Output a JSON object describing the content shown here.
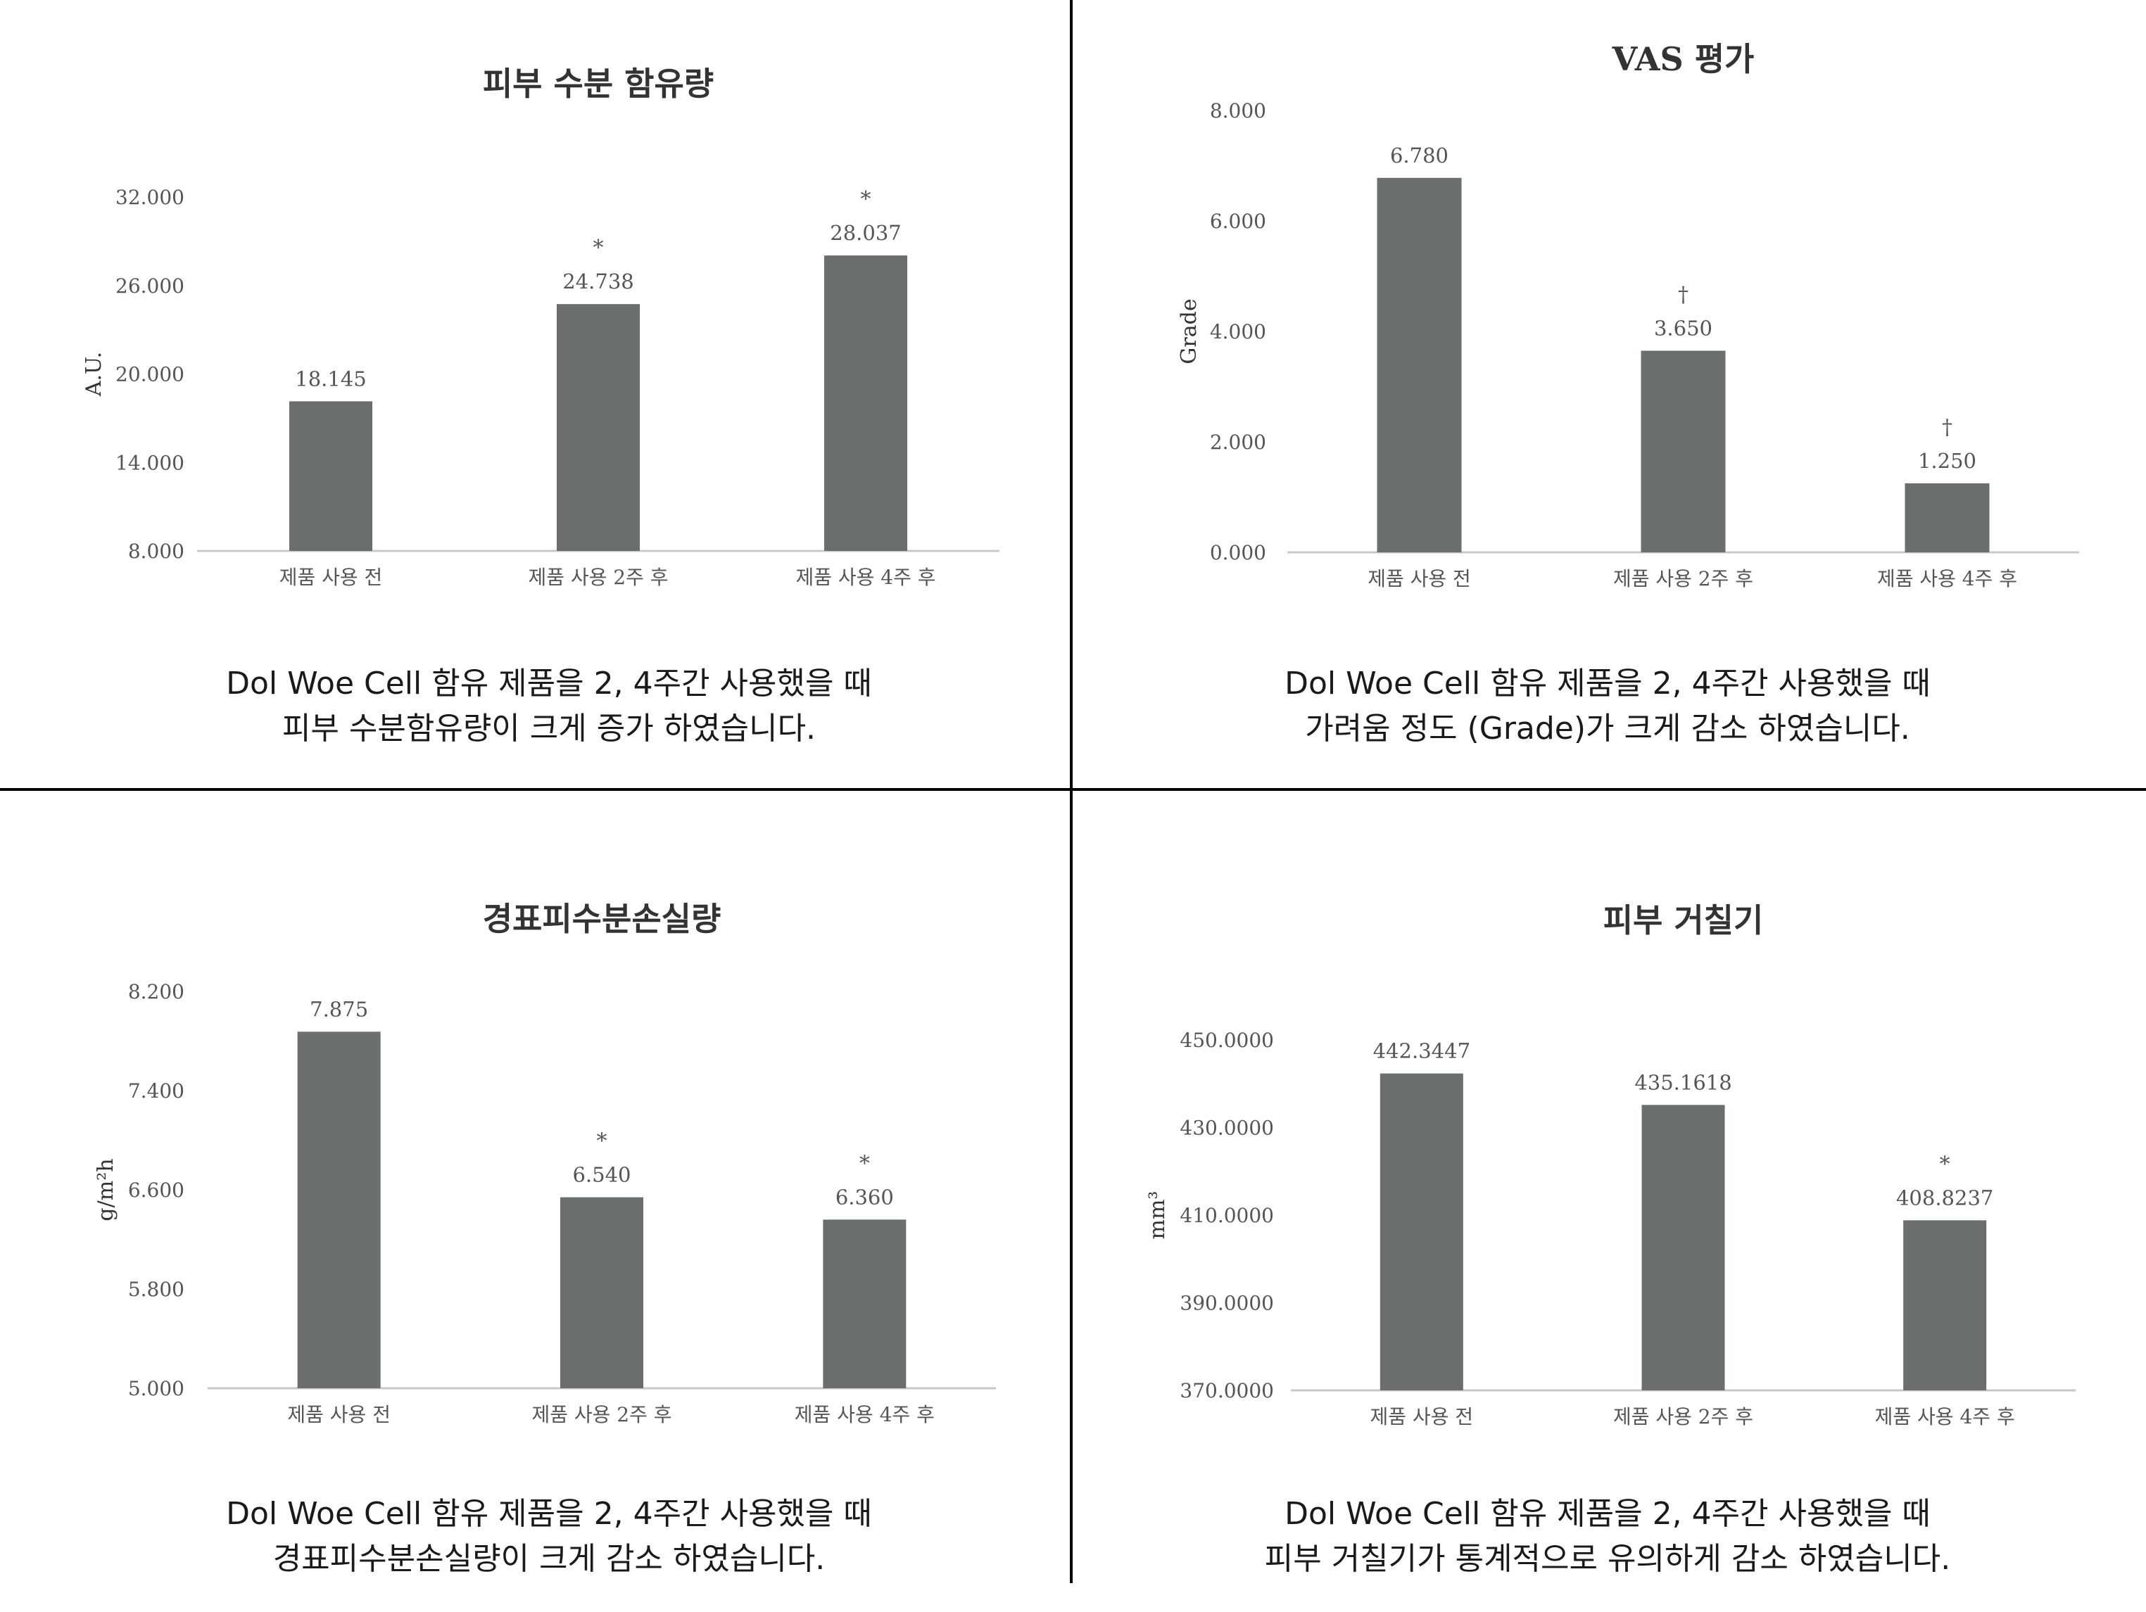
{
  "colors": {
    "bar": "#6a6e6f",
    "axis": "#c8c8c8",
    "divider": "#000000"
  },
  "chart_data": [
    {
      "type": "bar",
      "title": "피부 수분 함유량",
      "ylabel": "A.U.",
      "categories": [
        "제품 사용 전",
        "제품 사용 2주 후",
        "제품 사용 4주 후"
      ],
      "values": [
        18.145,
        24.738,
        28.037
      ],
      "value_labels": [
        "18.145",
        "24.738",
        "28.037"
      ],
      "markers": [
        "",
        "*",
        "*"
      ],
      "yticks": [
        "8.000",
        "14.000",
        "20.000",
        "26.000",
        "32.000"
      ],
      "ylim": [
        8,
        32
      ],
      "caption": [
        "Dol Woe Cell 함유 제품을 2, 4주간 사용했을 때",
        "피부 수분함유량이 크게 증가 하였습니다."
      ]
    },
    {
      "type": "bar",
      "title": "VAS 평가",
      "ylabel": "Grade",
      "categories": [
        "제품 사용 전",
        "제품 사용 2주 후",
        "제품 사용 4주 후"
      ],
      "values": [
        6.78,
        3.65,
        1.25
      ],
      "value_labels": [
        "6.780",
        "3.650",
        "1.250"
      ],
      "markers": [
        "",
        "†",
        "†"
      ],
      "yticks": [
        "0.000",
        "2.000",
        "4.000",
        "6.000",
        "8.000"
      ],
      "ylim": [
        0,
        8
      ],
      "caption": [
        "Dol Woe Cell 함유 제품을 2, 4주간 사용했을 때",
        "가려움 정도 (Grade)가 크게 감소 하였습니다."
      ]
    },
    {
      "type": "bar",
      "title": "경표피수분손실량",
      "ylabel": "g/m²h",
      "categories": [
        "제품 사용 전",
        "제품 사용 2주 후",
        "제품 사용 4주 후"
      ],
      "values": [
        7.875,
        6.54,
        6.36
      ],
      "value_labels": [
        "7.875",
        "6.540",
        "6.360"
      ],
      "markers": [
        "",
        "*",
        "*"
      ],
      "yticks": [
        "5.000",
        "5.800",
        "6.600",
        "7.400",
        "8.200"
      ],
      "ylim": [
        5,
        8.2
      ],
      "caption": [
        "Dol Woe Cell 함유 제품을 2, 4주간 사용했을 때",
        "경표피수분손실량이 크게 감소 하였습니다."
      ]
    },
    {
      "type": "bar",
      "title": "피부 거칠기",
      "ylabel": "mm³",
      "categories": [
        "제품 사용 전",
        "제품 사용 2주 후",
        "제품 사용 4주 후"
      ],
      "values": [
        442.3447,
        435.1618,
        408.8237
      ],
      "value_labels": [
        "442.3447",
        "435.1618",
        "408.8237"
      ],
      "markers": [
        "",
        "",
        "*"
      ],
      "yticks": [
        "370.0000",
        "390.0000",
        "410.0000",
        "430.0000",
        "450.0000"
      ],
      "ylim": [
        370,
        450
      ],
      "caption": [
        "Dol Woe Cell 함유 제품을 2, 4주간 사용했을 때",
        "피부 거칠기가 통계적으로 유의하게 감소 하였습니다."
      ]
    }
  ]
}
